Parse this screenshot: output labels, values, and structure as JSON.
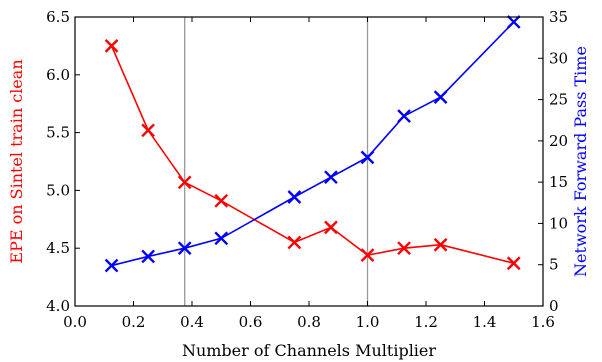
{
  "chart_data": {
    "type": "line",
    "xlabel": "Number of Channels Multiplier",
    "ylabel_left": "EPE on Sintel train clean",
    "ylabel_right": "Network Forward Pass Time",
    "xlim": [
      0.0,
      1.6
    ],
    "ylim_left": [
      4.0,
      6.5
    ],
    "ylim_right": [
      0,
      35
    ],
    "x_ticks": [
      "0.0",
      "0.2",
      "0.4",
      "0.6",
      "0.8",
      "1.0",
      "1.2",
      "1.4",
      "1.6"
    ],
    "y_left_ticks": [
      "4.0",
      "4.5",
      "5.0",
      "5.5",
      "6.0",
      "6.5"
    ],
    "y_right_ticks": [
      "0",
      "5",
      "10",
      "15",
      "20",
      "25",
      "30",
      "35"
    ],
    "vertical_lines": [
      0.375,
      1.0
    ],
    "grid": false,
    "series": [
      {
        "axis": "left",
        "color": "#ff0000",
        "marker": "cross",
        "x": [
          0.125,
          0.25,
          0.375,
          0.5,
          0.75,
          0.875,
          1.0,
          1.125,
          1.25,
          1.5
        ],
        "y": [
          6.25,
          5.52,
          5.07,
          4.91,
          4.55,
          4.68,
          4.44,
          4.5,
          4.53,
          4.37
        ]
      },
      {
        "axis": "right",
        "color": "#0000ff",
        "marker": "cross",
        "x": [
          0.125,
          0.25,
          0.375,
          0.5,
          0.75,
          0.875,
          1.0,
          1.125,
          1.25,
          1.5
        ],
        "y": [
          4.9,
          6.0,
          7.0,
          8.2,
          13.2,
          15.6,
          18.0,
          23.0,
          25.3,
          34.4
        ]
      }
    ]
  }
}
